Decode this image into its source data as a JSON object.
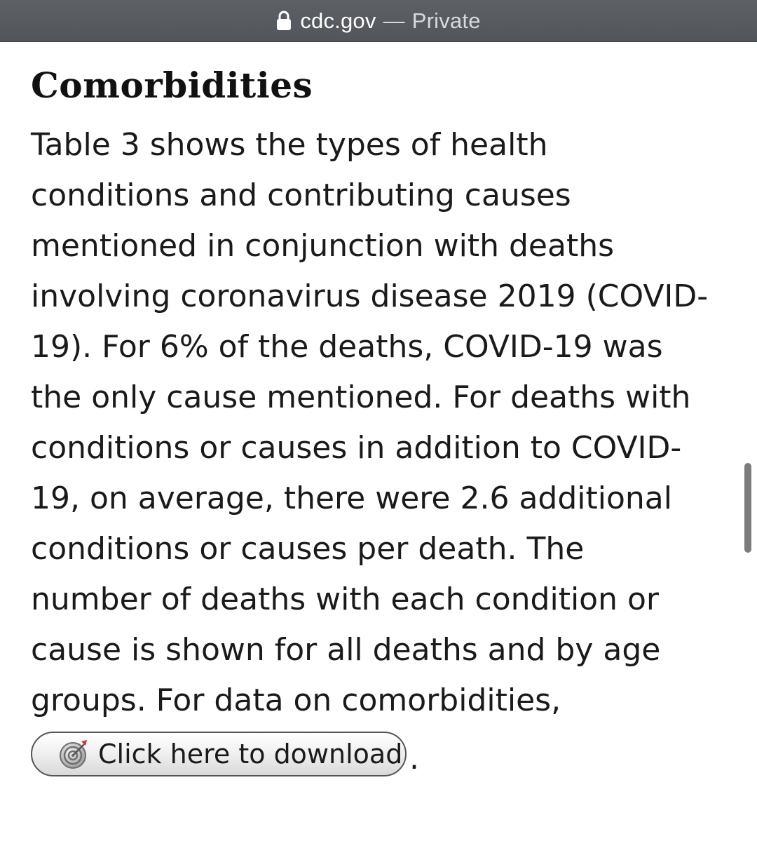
{
  "browser": {
    "domain": "cdc.gov",
    "separator": "—",
    "mode": "Private",
    "icons": {
      "lock": "lock-icon"
    }
  },
  "article": {
    "heading": "Comorbidities",
    "paragraph_lines": [
      "Table 3 shows the types of health",
      "conditions and contributing causes",
      "mentioned in conjunction with deaths",
      "involving coronavirus disease 2019 (COVID-",
      "19). For 6% of the deaths, COVID-19 was",
      "the only cause mentioned. For deaths with",
      "conditions or causes in addition to COVID-",
      "19, on average, there were 2.6 additional",
      "conditions or causes per death. The",
      "number of deaths with each condition or",
      "cause is shown for all deaths and by age",
      "groups. For data on comorbidities,"
    ],
    "download_button": {
      "label": "Click here to download",
      "icon": "target-icon"
    },
    "trailing_punctuation": "."
  },
  "colors": {
    "address_bar": "#5d6166",
    "text": "#1a1a1a",
    "scrollbar": "#7c7c7c"
  }
}
